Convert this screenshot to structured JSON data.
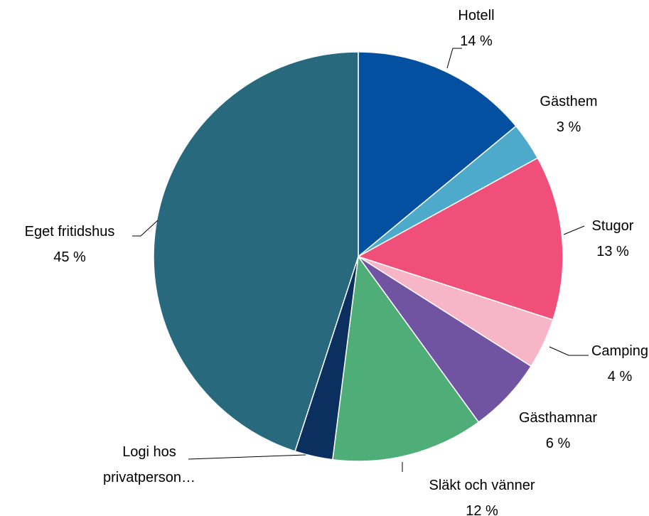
{
  "chart_data": {
    "type": "pie",
    "categories": [
      "Hotell",
      "Gästhem",
      "Stugor",
      "Camping",
      "Gästhamnar",
      "Släkt och vänner",
      "Logi hos privatperson…",
      "Eget fritidshus"
    ],
    "values": [
      14,
      3,
      13,
      4,
      6,
      12,
      3,
      45
    ],
    "value_labels": [
      "14 %",
      "3 %",
      "13 %",
      "4 %",
      "6 %",
      "12 %",
      null,
      "45 %"
    ],
    "colors": [
      "#0450a0",
      "#4eaacb",
      "#ef4f78",
      "#f7b6c8",
      "#7053a1",
      "#4fad77",
      "#0b3060",
      "#28697e"
    ]
  }
}
